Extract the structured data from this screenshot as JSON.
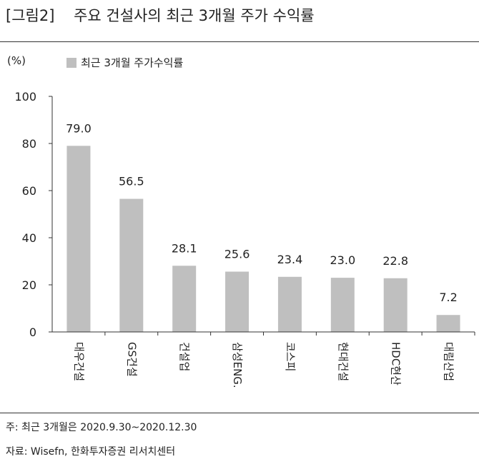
{
  "figure": {
    "title": "[그림2]    주요 건설사의 최근 3개월 주가 수익률",
    "unit_label": "(%)",
    "notes": [
      "주: 최근 3개월은 2020.9.30~2020.12.30",
      "자료: Wisefn, 한화투자증권 리서치센터"
    ]
  },
  "chart_data": {
    "type": "bar",
    "title": "",
    "xlabel": "",
    "ylabel": "(%)",
    "categories": [
      "대우건설",
      "GS건설",
      "건설업",
      "삼성ENG.",
      "코스피",
      "현대건설",
      "HDC현산",
      "대림산업"
    ],
    "series": [
      {
        "name": "최근 3개월  주가수익률",
        "values": [
          79.0,
          56.5,
          28.1,
          25.6,
          23.4,
          23.0,
          22.8,
          7.2
        ]
      }
    ],
    "value_labels": [
      "79.0",
      "56.5",
      "28.1",
      "25.6",
      "23.4",
      "23.0",
      "22.8",
      "7.2"
    ],
    "ylim": [
      0,
      100
    ],
    "yticks": [
      0,
      20,
      40,
      60,
      80,
      100
    ],
    "legend": "top-left",
    "grid": false,
    "bar_color": "#bfbfbf"
  }
}
